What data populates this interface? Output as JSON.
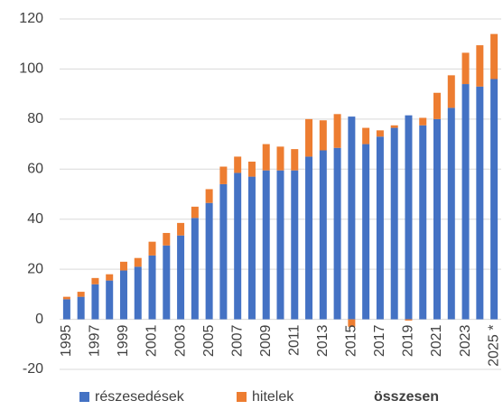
{
  "chart_data": {
    "type": "stacked_bar",
    "categories": [
      "1995",
      null,
      "1997",
      null,
      "1999",
      null,
      "2001",
      null,
      "2003",
      null,
      "2005",
      null,
      "2007",
      null,
      "2009",
      null,
      "2011",
      null,
      "2013",
      null,
      "2015",
      null,
      "2017",
      null,
      "2019",
      null,
      "2021",
      null,
      "2023",
      null,
      "2025 *"
    ],
    "series": [
      {
        "name": "részesedések",
        "color": "#4472c4",
        "values": [
          8,
          9,
          14,
          15.5,
          19.5,
          21,
          25.5,
          29.5,
          33.5,
          40.5,
          46.5,
          54,
          58.5,
          57,
          59.5,
          59.5,
          59.5,
          65,
          67.5,
          68.5,
          81,
          70,
          73,
          76.5,
          81.5,
          77.5,
          80,
          84.5,
          94,
          93,
          96
        ]
      },
      {
        "name": "hitelek",
        "color": "#ed7d31",
        "values": [
          1,
          2,
          2.5,
          2.5,
          3.5,
          3.5,
          5.5,
          5,
          5,
          4.5,
          5.5,
          7,
          6.5,
          6,
          10.5,
          9.5,
          8.5,
          15,
          12,
          13.5,
          -3,
          6.5,
          2.5,
          1,
          -0.5,
          3,
          10.5,
          13,
          12.5,
          16.5,
          18
        ]
      }
    ],
    "total_label": "összesen",
    "ylim": [
      -20,
      120
    ],
    "yticks": [
      -20,
      0,
      20,
      40,
      60,
      80,
      100,
      120
    ],
    "grid": true
  }
}
